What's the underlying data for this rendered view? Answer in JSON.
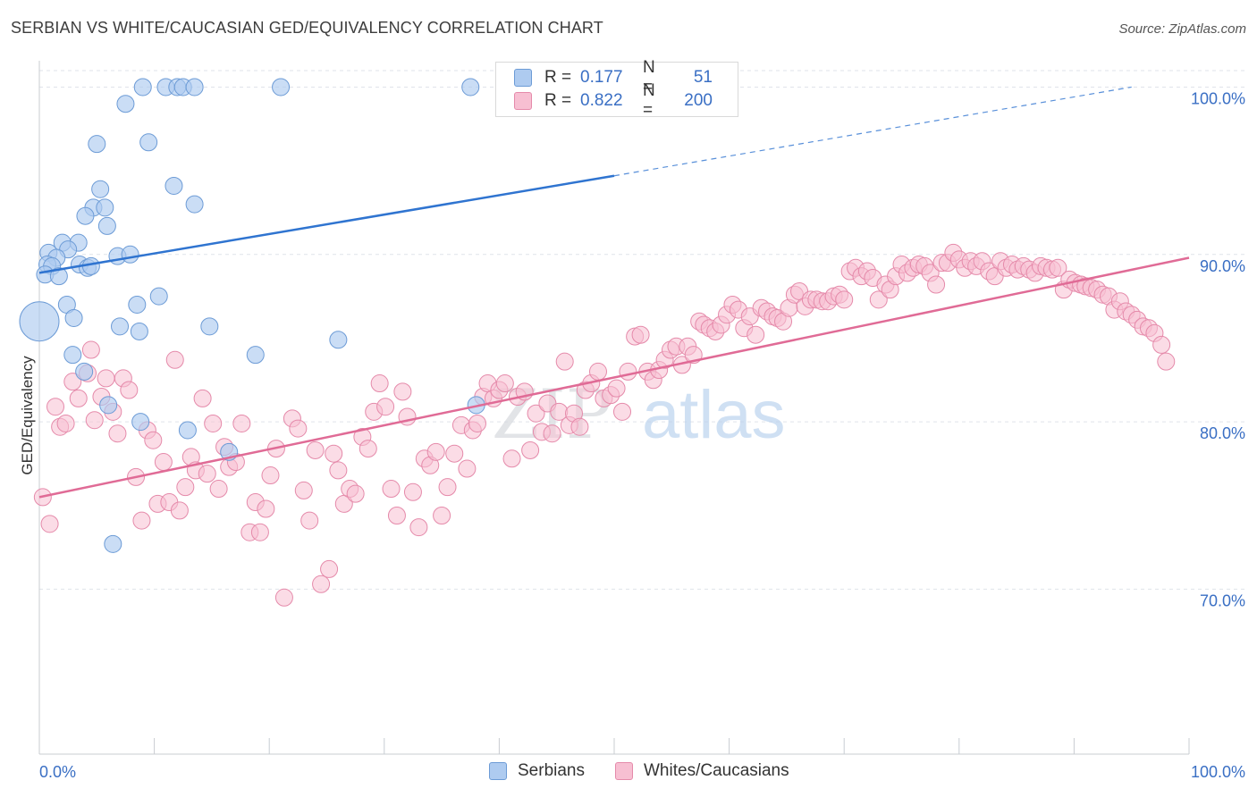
{
  "title": "SERBIAN VS WHITE/CAUCASIAN GED/EQUIVALENCY CORRELATION CHART",
  "source": "Source: ZipAtlas.com",
  "watermark": {
    "zip": "ZIP",
    "atlas": "atlas"
  },
  "legend": {
    "rows": [
      {
        "r_label": "R =",
        "r_value": "0.177",
        "n_label": "N =",
        "n_value": "51"
      },
      {
        "r_label": "R =",
        "r_value": "0.822",
        "n_label": "N =",
        "n_value": "200"
      }
    ]
  },
  "bottom_legend": [
    "Serbians",
    "Whites/Caucasians"
  ],
  "colors": {
    "serbian_fill": "#aecbf0",
    "serbian_stroke": "#6c9bd6",
    "serbian_line": "#2f74d0",
    "white_fill": "#f7bfd2",
    "white_stroke": "#e58aaa",
    "white_line": "#e06b96",
    "axis_label": "#3a6fc4",
    "grid": "#dfe3ea"
  },
  "chart_data": {
    "type": "scatter",
    "xlabel": "",
    "ylabel": "GED/Equivalency",
    "xlim": [
      0,
      100
    ],
    "ylim": [
      61,
      102
    ],
    "x_ticks": [
      "0.0%",
      "100.0%"
    ],
    "y_ticks": [
      {
        "value": 100,
        "label": "100.0%"
      },
      {
        "value": 90,
        "label": "90.0%"
      },
      {
        "value": 80,
        "label": "80.0%"
      },
      {
        "value": 70,
        "label": "70.0%"
      }
    ],
    "grid": true,
    "legend_position": "top-center",
    "series": [
      {
        "name": "Serbians",
        "r": 0.177,
        "n": 51,
        "trend": {
          "x0": 0,
          "y0": 88.9,
          "x1": 50,
          "y1": 94.7,
          "dashed_to_x": 95,
          "dashed_to_y": 100
        },
        "points": [
          [
            9,
            100
          ],
          [
            11,
            100
          ],
          [
            12,
            100
          ],
          [
            12.5,
            100
          ],
          [
            13.5,
            100
          ],
          [
            21,
            100
          ],
          [
            37.5,
            100
          ],
          [
            7.5,
            99
          ],
          [
            5,
            96.6
          ],
          [
            9.5,
            96.7
          ],
          [
            5.3,
            93.9
          ],
          [
            11.7,
            94.1
          ],
          [
            13.5,
            93
          ],
          [
            4.7,
            92.8
          ],
          [
            5.7,
            92.8
          ],
          [
            4,
            92.3
          ],
          [
            5.9,
            91.7
          ],
          [
            2,
            90.7
          ],
          [
            3.4,
            90.7
          ],
          [
            2.5,
            90.3
          ],
          [
            0.8,
            90.1
          ],
          [
            1.5,
            89.8
          ],
          [
            6.8,
            89.9
          ],
          [
            7.9,
            90
          ],
          [
            3.5,
            89.4
          ],
          [
            4.2,
            89.2
          ],
          [
            4.5,
            89.3
          ],
          [
            0.7,
            89.4
          ],
          [
            1.1,
            89.3
          ],
          [
            0.5,
            88.8
          ],
          [
            1.7,
            88.7
          ],
          [
            2.4,
            87
          ],
          [
            8.5,
            87
          ],
          [
            10.4,
            87.5
          ],
          [
            3,
            86.2
          ],
          [
            7,
            85.7
          ],
          [
            8.7,
            85.4
          ],
          [
            14.8,
            85.7
          ],
          [
            0,
            86
          ],
          [
            26,
            84.9
          ],
          [
            2.9,
            84
          ],
          [
            18.8,
            84
          ],
          [
            3.9,
            83
          ],
          [
            38,
            81
          ],
          [
            6,
            81
          ],
          [
            8.8,
            80
          ],
          [
            12.9,
            79.5
          ],
          [
            16.5,
            78.2
          ],
          [
            6.4,
            72.7
          ]
        ]
      },
      {
        "name": "Whites/Caucasians",
        "r": 0.822,
        "n": 200,
        "trend": {
          "x0": 0,
          "y0": 75.5,
          "x1": 100,
          "y1": 89.8
        },
        "points": [
          [
            0.3,
            75.5
          ],
          [
            0.9,
            73.9
          ],
          [
            1.4,
            80.9
          ],
          [
            1.8,
            79.7
          ],
          [
            2.3,
            79.9
          ],
          [
            2.9,
            82.4
          ],
          [
            3.4,
            81.4
          ],
          [
            4.2,
            82.9
          ],
          [
            4.5,
            84.3
          ],
          [
            4.8,
            80.1
          ],
          [
            5.4,
            81.5
          ],
          [
            5.8,
            82.6
          ],
          [
            6.4,
            80.6
          ],
          [
            6.8,
            79.3
          ],
          [
            7.3,
            82.6
          ],
          [
            7.8,
            81.9
          ],
          [
            8.4,
            76.7
          ],
          [
            8.9,
            74.1
          ],
          [
            9.4,
            79.5
          ],
          [
            9.9,
            78.9
          ],
          [
            10.3,
            75.1
          ],
          [
            10.8,
            77.6
          ],
          [
            11.3,
            75.2
          ],
          [
            11.8,
            83.7
          ],
          [
            12.2,
            74.7
          ],
          [
            12.7,
            76.1
          ],
          [
            13.2,
            77.9
          ],
          [
            13.6,
            77.1
          ],
          [
            14.2,
            81.4
          ],
          [
            14.6,
            76.9
          ],
          [
            15.1,
            79.9
          ],
          [
            15.6,
            76
          ],
          [
            16.1,
            78.5
          ],
          [
            16.5,
            77.3
          ],
          [
            17.1,
            77.6
          ],
          [
            17.6,
            79.9
          ],
          [
            18.3,
            73.4
          ],
          [
            18.8,
            75.2
          ],
          [
            19.2,
            73.4
          ],
          [
            19.7,
            74.8
          ],
          [
            20.1,
            76.8
          ],
          [
            20.6,
            78.4
          ],
          [
            21.3,
            69.5
          ],
          [
            22,
            80.2
          ],
          [
            22.5,
            79.6
          ],
          [
            23,
            75.9
          ],
          [
            23.5,
            74.1
          ],
          [
            24,
            78.3
          ],
          [
            24.5,
            70.3
          ],
          [
            25.2,
            71.2
          ],
          [
            25.6,
            78.1
          ],
          [
            26,
            77.1
          ],
          [
            26.5,
            75.1
          ],
          [
            27,
            76
          ],
          [
            27.5,
            75.7
          ],
          [
            28.1,
            79.1
          ],
          [
            28.6,
            78.4
          ],
          [
            29.1,
            80.6
          ],
          [
            29.6,
            82.3
          ],
          [
            30.1,
            80.9
          ],
          [
            30.6,
            76
          ],
          [
            31.1,
            74.4
          ],
          [
            31.6,
            81.8
          ],
          [
            32,
            80.3
          ],
          [
            32.5,
            75.8
          ],
          [
            33,
            73.7
          ],
          [
            33.5,
            77.8
          ],
          [
            34,
            77.4
          ],
          [
            34.5,
            78.2
          ],
          [
            35,
            74.4
          ],
          [
            35.5,
            76.1
          ],
          [
            36.1,
            78.1
          ],
          [
            36.7,
            79.8
          ],
          [
            37.2,
            77.2
          ],
          [
            37.7,
            79.5
          ],
          [
            38.1,
            79.9
          ],
          [
            38.6,
            81.5
          ],
          [
            39,
            82.3
          ],
          [
            39.5,
            81.4
          ],
          [
            40,
            81.9
          ],
          [
            40.5,
            82.3
          ],
          [
            41.1,
            77.8
          ],
          [
            41.6,
            81.5
          ],
          [
            42.2,
            81.8
          ],
          [
            42.7,
            78.3
          ],
          [
            43.2,
            80.5
          ],
          [
            43.7,
            79.4
          ],
          [
            44.2,
            81.1
          ],
          [
            44.6,
            79.3
          ],
          [
            45.2,
            80.6
          ],
          [
            45.7,
            83.6
          ],
          [
            46.1,
            79.8
          ],
          [
            46.5,
            80.5
          ],
          [
            47,
            79.7
          ],
          [
            47.5,
            81.9
          ],
          [
            48,
            82.3
          ],
          [
            48.6,
            83
          ],
          [
            49.1,
            81.4
          ],
          [
            49.7,
            81.6
          ],
          [
            50.2,
            82
          ],
          [
            50.7,
            80.6
          ],
          [
            51.2,
            83
          ],
          [
            51.8,
            85.1
          ],
          [
            52.3,
            85.2
          ],
          [
            52.9,
            83
          ],
          [
            53.4,
            82.5
          ],
          [
            53.9,
            83.1
          ],
          [
            54.4,
            83.7
          ],
          [
            54.9,
            84.3
          ],
          [
            55.4,
            84.5
          ],
          [
            55.9,
            83.4
          ],
          [
            56.4,
            84.5
          ],
          [
            56.9,
            84
          ],
          [
            57.4,
            86
          ],
          [
            57.8,
            85.8
          ],
          [
            58.3,
            85.6
          ],
          [
            58.8,
            85.4
          ],
          [
            59.3,
            85.8
          ],
          [
            59.8,
            86.4
          ],
          [
            60.3,
            87
          ],
          [
            60.8,
            86.7
          ],
          [
            61.3,
            85.6
          ],
          [
            61.8,
            86.3
          ],
          [
            62.3,
            85.2
          ],
          [
            62.8,
            86.8
          ],
          [
            63.3,
            86.6
          ],
          [
            63.8,
            86.3
          ],
          [
            64.2,
            86.2
          ],
          [
            64.7,
            86
          ],
          [
            65.2,
            86.8
          ],
          [
            65.7,
            87.6
          ],
          [
            66.1,
            87.8
          ],
          [
            66.6,
            86.9
          ],
          [
            67.1,
            87.3
          ],
          [
            67.6,
            87.3
          ],
          [
            68.1,
            87.2
          ],
          [
            68.6,
            87.2
          ],
          [
            69.1,
            87.5
          ],
          [
            69.6,
            87.6
          ],
          [
            70,
            87.3
          ],
          [
            70.5,
            89
          ],
          [
            71,
            89.2
          ],
          [
            71.5,
            88.7
          ],
          [
            72,
            89
          ],
          [
            72.5,
            88.6
          ],
          [
            73,
            87.3
          ],
          [
            73.6,
            88.2
          ],
          [
            74,
            87.9
          ],
          [
            74.5,
            88.7
          ],
          [
            75,
            89.4
          ],
          [
            75.5,
            88.9
          ],
          [
            76,
            89.2
          ],
          [
            76.5,
            89.4
          ],
          [
            77,
            89.3
          ],
          [
            77.5,
            88.9
          ],
          [
            78,
            88.2
          ],
          [
            78.5,
            89.5
          ],
          [
            79,
            89.5
          ],
          [
            79.5,
            90.1
          ],
          [
            80,
            89.7
          ],
          [
            80.5,
            89.2
          ],
          [
            81,
            89.6
          ],
          [
            81.5,
            89.3
          ],
          [
            82,
            89.6
          ],
          [
            82.6,
            89
          ],
          [
            83.1,
            88.7
          ],
          [
            83.6,
            89.6
          ],
          [
            84.1,
            89.2
          ],
          [
            84.6,
            89.4
          ],
          [
            85.1,
            89.1
          ],
          [
            85.6,
            89.3
          ],
          [
            86.1,
            89.1
          ],
          [
            86.6,
            88.9
          ],
          [
            87.1,
            89.3
          ],
          [
            87.6,
            89.2
          ],
          [
            88.1,
            89.1
          ],
          [
            88.6,
            89.2
          ],
          [
            89.1,
            87.9
          ],
          [
            89.6,
            88.5
          ],
          [
            90.1,
            88.3
          ],
          [
            90.6,
            88.2
          ],
          [
            91,
            88.1
          ],
          [
            91.5,
            88
          ],
          [
            92,
            87.9
          ],
          [
            92.5,
            87.6
          ],
          [
            93,
            87.5
          ],
          [
            93.5,
            86.7
          ],
          [
            94,
            87.2
          ],
          [
            94.5,
            86.6
          ],
          [
            95,
            86.4
          ],
          [
            95.5,
            86.1
          ],
          [
            96,
            85.7
          ],
          [
            96.5,
            85.6
          ],
          [
            97,
            85.3
          ],
          [
            97.6,
            84.6
          ],
          [
            98,
            83.6
          ]
        ]
      }
    ]
  }
}
